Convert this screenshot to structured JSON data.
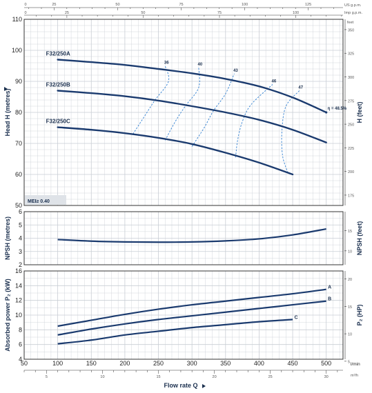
{
  "chart_data": [
    {
      "type": "line",
      "name": "head-chart",
      "ylabel": "Head H (metres)",
      "ylabel_secondary": "H (feet)",
      "xlim": [
        50,
        525
      ],
      "ylim": [
        50,
        110
      ],
      "y_ticks": [
        50,
        60,
        70,
        80,
        90,
        100,
        110
      ],
      "y2_ticks": [
        175,
        200,
        225,
        250,
        275,
        300,
        325,
        350
      ],
      "y2_unit": "feet",
      "grid": true,
      "series": [
        {
          "name": "F32/250A",
          "x": [
            100,
            150,
            200,
            250,
            300,
            350,
            400,
            450,
            500
          ],
          "values": [
            97,
            96.2,
            95.3,
            94,
            92.6,
            90.8,
            88.4,
            84.8,
            80
          ]
        },
        {
          "name": "F32/250B",
          "x": [
            100,
            150,
            200,
            250,
            300,
            350,
            400,
            450,
            500
          ],
          "values": [
            87,
            86.2,
            85.2,
            83.8,
            82,
            80,
            77.6,
            74.4,
            70.3
          ]
        },
        {
          "name": "F32/250C",
          "x": [
            100,
            150,
            200,
            250,
            300,
            350,
            400,
            450
          ],
          "values": [
            75.2,
            74.4,
            73.3,
            71.8,
            69.8,
            67,
            63.8,
            60
          ]
        }
      ],
      "efficiency_lines": [
        {
          "label": "36",
          "x": [
            212,
            230,
            245,
            265,
            260
          ],
          "y": [
            73,
            79,
            84,
            90,
            95
          ]
        },
        {
          "label": "40",
          "x": [
            260,
            275,
            290,
            310,
            310
          ],
          "y": [
            71,
            77,
            82,
            88,
            94.5
          ]
        },
        {
          "label": "43",
          "x": [
            300,
            318,
            332,
            350,
            363
          ],
          "y": [
            69,
            75,
            80.5,
            86,
            92.5
          ]
        },
        {
          "label": "46",
          "x": [
            365,
            368,
            375,
            388,
            420
          ],
          "y": [
            65.5,
            71,
            77,
            82.5,
            89
          ]
        },
        {
          "label": "47",
          "x": [
            443,
            435,
            434,
            440,
            460
          ],
          "y": [
            60.5,
            66,
            74,
            82,
            87
          ]
        }
      ],
      "efficiency_note": "η = 48.5%",
      "mei_label": "MEI≥ 0.40"
    },
    {
      "type": "line",
      "name": "npsh-chart",
      "ylabel": "NPSH (metres)",
      "ylabel_secondary": "NPSH (feet)",
      "xlim": [
        50,
        525
      ],
      "ylim": [
        2,
        6
      ],
      "y_ticks": [
        2,
        3,
        4,
        5,
        6
      ],
      "y2_ticks": [
        10,
        15
      ],
      "series": [
        {
          "x": [
            100,
            150,
            200,
            250,
            300,
            350,
            400,
            450,
            500
          ],
          "values": [
            3.9,
            3.78,
            3.72,
            3.7,
            3.72,
            3.8,
            3.95,
            4.25,
            4.7
          ]
        }
      ]
    },
    {
      "type": "line",
      "name": "power-chart",
      "ylabel": "Absorbed power P₂ (kW)",
      "ylabel_secondary": "P₂ (HP)",
      "xlim": [
        50,
        525
      ],
      "ylim": [
        4,
        16
      ],
      "y_ticks": [
        4,
        6,
        8,
        10,
        12,
        14,
        16
      ],
      "y2_ticks": [
        5,
        10,
        15,
        20
      ],
      "series": [
        {
          "name": "A",
          "x": [
            100,
            150,
            200,
            250,
            300,
            350,
            400,
            450,
            500
          ],
          "values": [
            8.5,
            9.3,
            10.1,
            10.8,
            11.4,
            11.9,
            12.4,
            12.9,
            13.5
          ]
        },
        {
          "name": "B",
          "x": [
            100,
            150,
            200,
            250,
            300,
            350,
            400,
            450,
            500
          ],
          "values": [
            7.3,
            8.1,
            8.8,
            9.4,
            9.9,
            10.4,
            10.9,
            11.4,
            11.9
          ]
        },
        {
          "name": "C",
          "x": [
            100,
            150,
            200,
            250,
            300,
            350,
            400,
            450
          ],
          "values": [
            6.1,
            6.6,
            7.3,
            7.8,
            8.3,
            8.7,
            9.1,
            9.4
          ]
        }
      ]
    }
  ],
  "axes": {
    "x_lmin": {
      "unit": "l/min",
      "ticks": [
        50,
        100,
        150,
        200,
        250,
        300,
        350,
        400,
        450,
        500
      ]
    },
    "x_m3h": {
      "unit": "m³/h",
      "ticks": [
        5,
        10,
        15,
        20,
        25,
        30
      ]
    },
    "x_usgpm": {
      "unit": "US g.p.m.",
      "ticks": [
        0,
        25,
        50,
        75,
        100,
        125
      ]
    },
    "x_impgpm": {
      "unit": "Imp g.p.m.",
      "ticks": [
        0,
        25,
        50,
        75,
        100
      ]
    },
    "x_title": "Flow rate Q"
  },
  "colors": {
    "curve": "#1a3a6e",
    "efficiency": "#2f7fd1",
    "grid": "#c8cdd4",
    "frame": "#333333"
  }
}
